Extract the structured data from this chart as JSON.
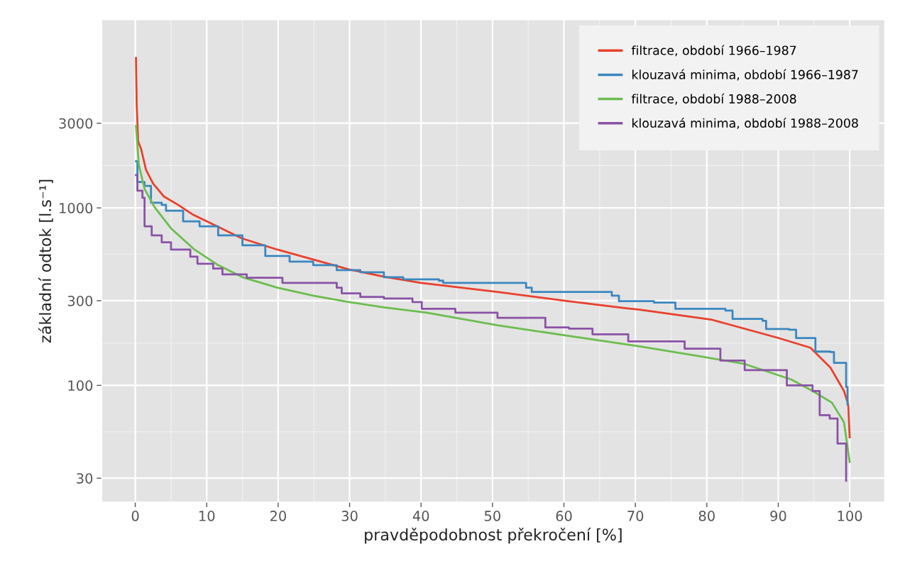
{
  "chart_data": {
    "type": "step",
    "xlabel": "pravděpodobnost překročení [%]",
    "ylabel": "základní odtok [l.s⁻¹]",
    "log": "y",
    "xlim": [
      -4.7,
      104.9
    ],
    "ylim": [
      22,
      11500
    ],
    "xticks": [
      0,
      10,
      20,
      30,
      40,
      50,
      60,
      70,
      80,
      90,
      100
    ],
    "yticks": [
      30,
      100,
      300,
      1000,
      3000
    ],
    "grid": true,
    "legend": "top right",
    "marker": "none",
    "line_style": "solid",
    "series": [
      {
        "name": "filtrace, období 1966–1987",
        "color": "#e8412c",
        "type": "line",
        "x": [
          0.1,
          0.2,
          0.3,
          0.4,
          0.8,
          1.5,
          2.5,
          4,
          6,
          8,
          10,
          14.9,
          19.9,
          24.9,
          29.9,
          34.8,
          40,
          50.7,
          60,
          68.7,
          70.6,
          80.6,
          90,
          94.5,
          97.3,
          99.2,
          99.8,
          100
        ],
        "values": [
          7000,
          3750,
          3030,
          2370,
          2160,
          1640,
          1370,
          1160,
          1040,
          920,
          840,
          674,
          582,
          512,
          450,
          410,
          378,
          336,
          300,
          272,
          267,
          235,
          185,
          163,
          126,
          93,
          78,
          51
        ]
      },
      {
        "name": "klouzavá minima, období 1966–1987",
        "color": "#3a87c0",
        "x": [
          0.1,
          0.3,
          1.3,
          2.2,
          3.7,
          4.3,
          6.7,
          9,
          11.6,
          15,
          18.2,
          21.6,
          24.9,
          28.2,
          31.5,
          34.8,
          37.5,
          42.5,
          43.1,
          54.7,
          55.5,
          66.7,
          67.7,
          72.6,
          75.6,
          82.6,
          83.6,
          87.8,
          88.3,
          91.5,
          92.5,
          95.2,
          97.3,
          97.8,
          99.5,
          99.7
        ],
        "values": [
          1830,
          1400,
          1330,
          1070,
          1040,
          964,
          840,
          788,
          700,
          615,
          536,
          498,
          476,
          446,
          434,
          407,
          396,
          389,
          378,
          355,
          336,
          320,
          298,
          293,
          270,
          264,
          237,
          231,
          208,
          206,
          185,
          155,
          154,
          134,
          98,
          78
        ]
      },
      {
        "name": "filtrace, období 1988–2008",
        "color": "#6cbd4f",
        "type": "line",
        "x": [
          0.1,
          0.5,
          1.3,
          2.7,
          5,
          8.3,
          11.6,
          15,
          19.9,
          24.9,
          29.9,
          34.8,
          40.8,
          50.7,
          60.7,
          70.6,
          78.6,
          85.3,
          91.8,
          94.8,
          97.5,
          99.2,
          100
        ],
        "values": [
          2900,
          1750,
          1280,
          1010,
          767,
          582,
          476,
          407,
          355,
          320,
          295,
          275,
          257,
          218,
          190,
          166,
          147,
          132,
          108,
          93,
          80,
          62,
          37
        ]
      },
      {
        "name": "klouzavá minima, období 1988–2008",
        "color": "#8a52a6",
        "x": [
          0.1,
          0.3,
          1,
          1.3,
          2.3,
          3.7,
          5,
          7.7,
          8.7,
          10.9,
          12.2,
          15.6,
          20.6,
          28.2,
          28.9,
          31.5,
          34.8,
          38.8,
          40.1,
          44.8,
          50.7,
          57.4,
          60.7,
          64,
          69,
          76.9,
          81.9,
          85.3,
          91.2,
          93.8,
          94.8,
          95.8,
          97.2,
          98.3,
          99.5
        ],
        "values": [
          1530,
          1250,
          1140,
          788,
          700,
          640,
          582,
          531,
          485,
          455,
          422,
          404,
          378,
          355,
          330,
          315,
          309,
          295,
          270,
          257,
          240,
          212,
          209,
          194,
          177,
          161,
          138,
          122,
          100,
          100,
          93,
          68,
          65,
          47,
          29
        ]
      }
    ]
  }
}
